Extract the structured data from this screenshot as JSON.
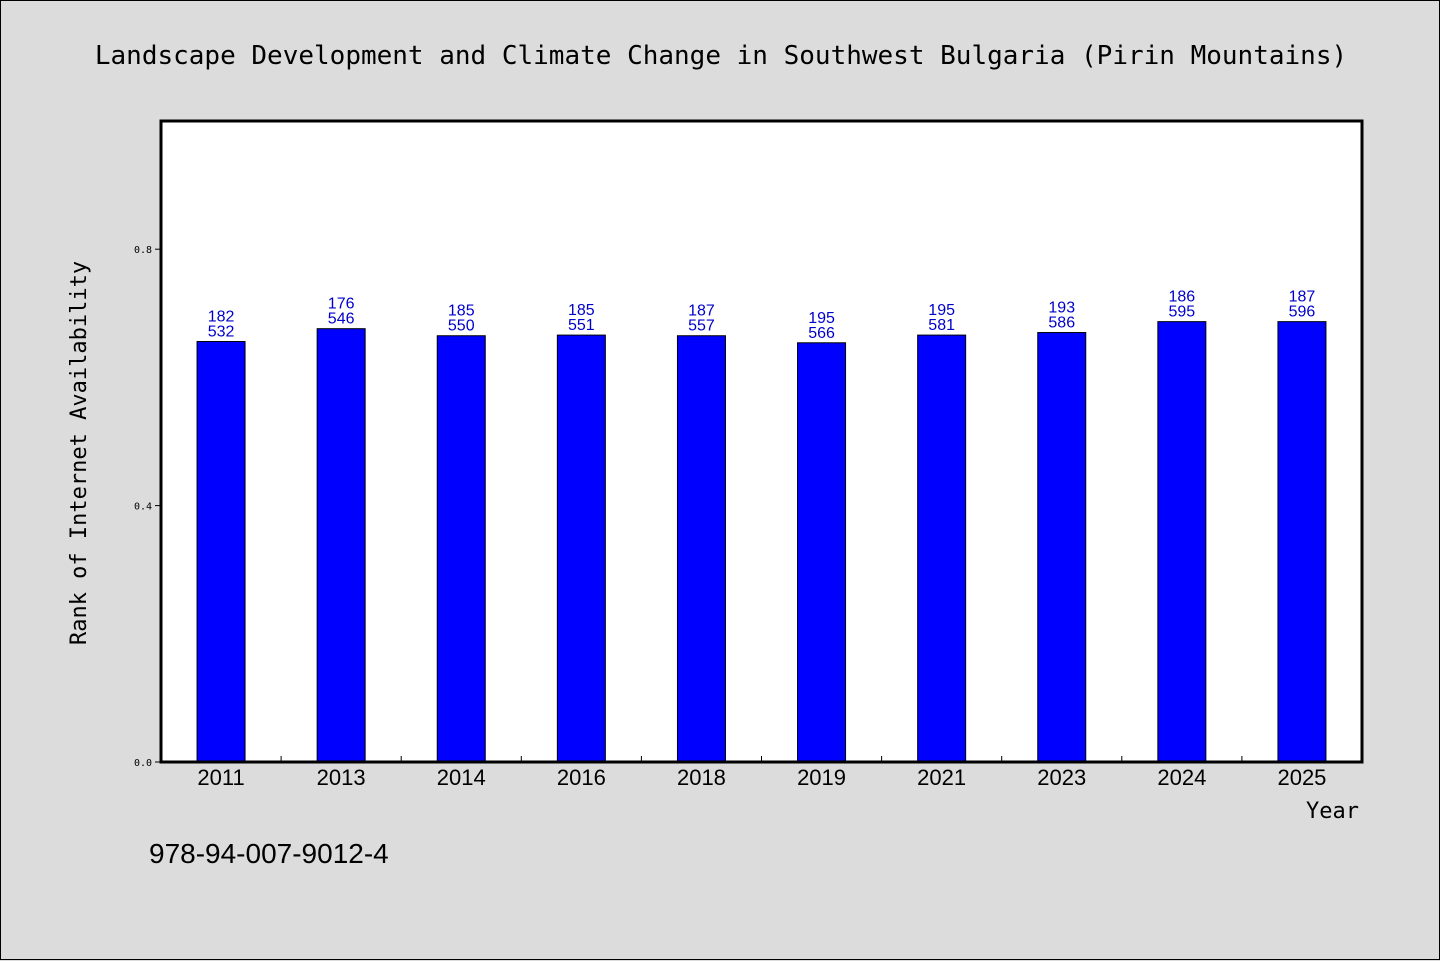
{
  "page": {
    "background": "#dcdcdc",
    "plot_background": "#ffffff",
    "bar_color": "#0000ff",
    "label_color": "#0000cc",
    "footer_text": "978-94-007-9012-4"
  },
  "chart_data": {
    "type": "bar",
    "title": "Landscape Development and Climate Change in Southwest Bulgaria (Pirin Mountains)",
    "xlabel": "Year",
    "ylabel": "Rank of Internet Availability",
    "ylim": [
      0,
      1.0
    ],
    "yticks": [
      "0.0",
      "0.4",
      "0.8"
    ],
    "ytick_values": [
      0.0,
      0.4,
      0.8
    ],
    "grid": false,
    "legend": "none",
    "categories": [
      "2011",
      "2013",
      "2014",
      "2016",
      "2018",
      "2019",
      "2021",
      "2023",
      "2024",
      "2025"
    ],
    "values": [
      0.656,
      0.676,
      0.665,
      0.666,
      0.665,
      0.654,
      0.666,
      0.67,
      0.687,
      0.687
    ],
    "data_labels": [
      [
        "182",
        "532"
      ],
      [
        "176",
        "546"
      ],
      [
        "185",
        "550"
      ],
      [
        "185",
        "551"
      ],
      [
        "187",
        "557"
      ],
      [
        "195",
        "566"
      ],
      [
        "195",
        "581"
      ],
      [
        "193",
        "586"
      ],
      [
        "186",
        "595"
      ],
      [
        "187",
        "596"
      ]
    ]
  }
}
